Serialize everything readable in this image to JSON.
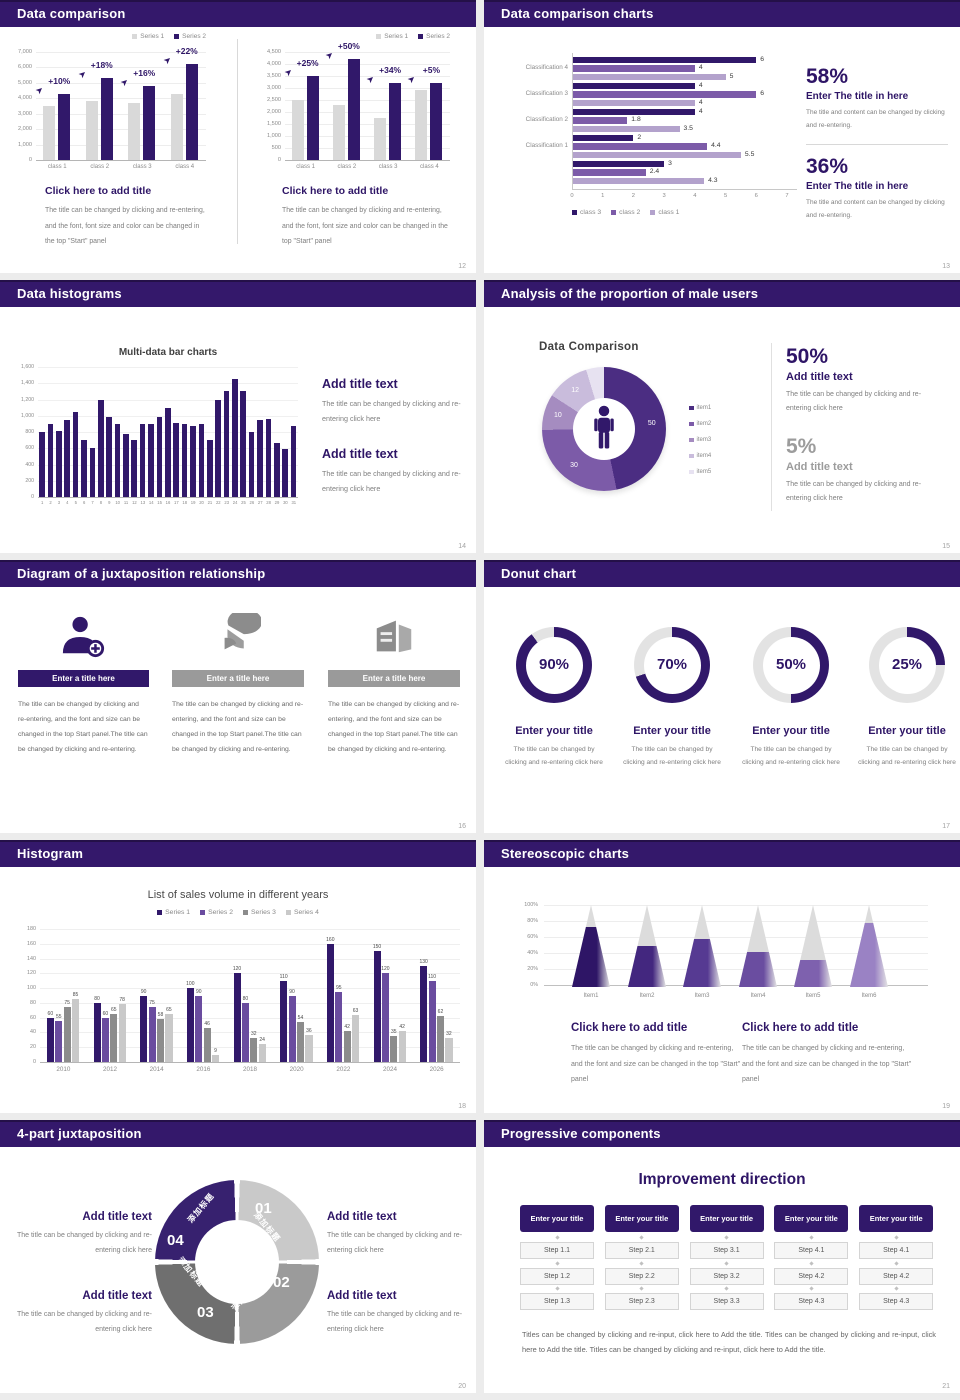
{
  "accent": {
    "header_bg": "#34186b",
    "header_edge": "#241048",
    "primary": "#31186a",
    "primary_text": "#2e1566",
    "purple_mid": "#7c5ba8",
    "purple_light": "#b3a2cc",
    "gray_bar": "#d9d9d9",
    "text_gray": "#7f7f7f",
    "muted": "#9c9c9c",
    "track": "#e3e3e3"
  },
  "chart_data": [
    {
      "id": "s12-left",
      "type": "bar",
      "legend": [
        "Series 1",
        "Series 2"
      ],
      "categories": [
        "class 1",
        "class 2",
        "class 3",
        "class 4"
      ],
      "series": [
        {
          "name": "Series 1",
          "color": "#d9d9d9",
          "values": [
            3500,
            3800,
            3700,
            4300
          ]
        },
        {
          "name": "Series 2",
          "color": "#31186a",
          "values": [
            4300,
            5300,
            4800,
            6200
          ]
        }
      ],
      "growth_labels": [
        "+10%",
        "+18%",
        "+16%",
        "+22%"
      ],
      "yticks": [
        "7,000",
        "6,000",
        "5,000",
        "4,000",
        "3,000",
        "2,000",
        "1,000",
        "0"
      ],
      "ymax": 7000
    },
    {
      "id": "s12-right",
      "type": "bar",
      "legend": [
        "Series 1",
        "Series 2"
      ],
      "categories": [
        "class 1",
        "class 2",
        "class 3",
        "class 4"
      ],
      "series": [
        {
          "name": "Series 1",
          "color": "#d9d9d9",
          "values": [
            2500,
            2300,
            1750,
            2900
          ]
        },
        {
          "name": "Series 2",
          "color": "#31186a",
          "values": [
            3500,
            4200,
            3200,
            3200
          ]
        }
      ],
      "growth_labels": [
        "+25%",
        "+50%",
        "+34%",
        "+5%"
      ],
      "yticks": [
        "4,500",
        "4,000",
        "3,500",
        "3,000",
        "2,500",
        "2,000",
        "1,500",
        "1,000",
        "500",
        "0"
      ],
      "ymax": 4500
    },
    {
      "id": "s13",
      "type": "bar-horizontal",
      "categories": [
        "Classification 4",
        "Classification 3",
        "Classification 2",
        "Classification 1",
        ""
      ],
      "series": [
        {
          "name": "class 3",
          "color": "#31186a",
          "values": [
            6,
            4,
            4,
            2,
            3
          ]
        },
        {
          "name": "class 2",
          "color": "#7c5ba8",
          "values": [
            4,
            6,
            1.8,
            4.4,
            2.4
          ]
        },
        {
          "name": "class 1",
          "color": "#b3a2cc",
          "values": [
            5,
            4,
            3.5,
            5.5,
            4.3
          ]
        }
      ],
      "xticks": [
        "0",
        "1",
        "2",
        "3",
        "4",
        "5",
        "6",
        "7"
      ],
      "xmax": 7
    },
    {
      "id": "s14",
      "type": "bar",
      "title": "Multi-data bar charts",
      "color": "#31186a",
      "categories": [
        "1",
        "2",
        "3",
        "4",
        "5",
        "6",
        "7",
        "8",
        "9",
        "10",
        "11",
        "12",
        "13",
        "14",
        "15",
        "16",
        "17",
        "18",
        "19",
        "20",
        "21",
        "22",
        "23",
        "24",
        "25",
        "26",
        "27",
        "28",
        "29",
        "30",
        "31"
      ],
      "values": [
        800,
        900,
        810,
        950,
        1050,
        700,
        600,
        1200,
        980,
        900,
        770,
        700,
        900,
        900,
        990,
        1100,
        910,
        900,
        880,
        900,
        700,
        1200,
        1300,
        1450,
        1300,
        800,
        950,
        960,
        660,
        590,
        870
      ],
      "yticks": [
        "1,600",
        "1,400",
        "1,200",
        "1,000",
        "800",
        "600",
        "400",
        "200",
        "0"
      ],
      "ymax": 1600
    },
    {
      "id": "s15",
      "type": "donut",
      "title": "Data Comparison",
      "slices": [
        {
          "label": "50",
          "value": 50,
          "color": "#4b2d82"
        },
        {
          "label": "30",
          "value": 30,
          "color": "#7c5ba8"
        },
        {
          "label": "10",
          "value": 10,
          "color": "#a58cc0"
        },
        {
          "label": "12",
          "value": 12,
          "color": "#c9bcdc"
        },
        {
          "label": "",
          "value": 5,
          "color": "#e7e2f1"
        }
      ],
      "legend": [
        "item1",
        "item2",
        "item3",
        "item4",
        "item5"
      ]
    },
    {
      "id": "s17",
      "type": "donut-gauges",
      "values": [
        90,
        70,
        50,
        25
      ],
      "arc_color": "#31186a",
      "track_color": "#e3e3e3"
    },
    {
      "id": "s18",
      "type": "bar",
      "title": "List of sales volume in different years",
      "categories": [
        "2010",
        "2012",
        "2014",
        "2016",
        "2018",
        "2020",
        "2022",
        "2024",
        "2026"
      ],
      "series": [
        {
          "name": "Series 1",
          "color": "#31186a",
          "values": [
            60,
            80,
            90,
            100,
            120,
            110,
            160,
            150,
            130
          ]
        },
        {
          "name": "Series 2",
          "color": "#6a4c9f",
          "values": [
            55,
            60,
            75,
            90,
            80,
            90,
            95,
            120,
            110
          ]
        },
        {
          "name": "Series 3",
          "color": "#8c8c8c",
          "values": [
            75,
            65,
            58,
            46,
            32,
            54,
            42,
            35,
            62
          ]
        },
        {
          "name": "Series 4",
          "color": "#c9c9c9",
          "values": [
            85,
            78,
            65,
            9,
            24,
            36,
            63,
            42,
            32
          ]
        }
      ],
      "yticks": [
        "180",
        "160",
        "140",
        "120",
        "100",
        "80",
        "60",
        "40",
        "20",
        "0"
      ],
      "ymax": 180
    },
    {
      "id": "s19",
      "type": "cone",
      "categories": [
        "Item1",
        "Item2",
        "Item3",
        "Item4",
        "Item5",
        "Item6"
      ],
      "values_pct": [
        73,
        50,
        58,
        43,
        33,
        78
      ],
      "colors": [
        "#2e1566",
        "#43277f",
        "#563a92",
        "#6a4da0",
        "#7e61ae",
        "#9a82c4"
      ],
      "yticks": [
        "100%",
        "80%",
        "60%",
        "40%",
        "20%",
        "0%"
      ]
    }
  ],
  "slides": {
    "s12": {
      "title": "Data comparison",
      "page": "12",
      "blocks": [
        {
          "heading": "Click here to add title",
          "body": "The title can be changed by clicking and re-entering, and the font, font size and color can be changed in the top \"Start\" panel"
        },
        {
          "heading": "Click here to add title",
          "body": "The title can be changed by clicking and re-entering, and the font, font size and color can be changed in the top \"Start\" panel"
        }
      ]
    },
    "s13": {
      "title": "Data comparison charts",
      "page": "13",
      "stats": [
        {
          "value": "58%",
          "heading": "Enter The title in here",
          "body": "The title and content can be changed by clicking and re-entering."
        },
        {
          "value": "36%",
          "heading": "Enter The title in here",
          "body": "The title and content can be changed by clicking and re-entering."
        }
      ]
    },
    "s14": {
      "title": "Data histograms",
      "page": "14",
      "blocks": [
        {
          "heading": "Add title text",
          "body": "The title can be changed by clicking and re-entering click here"
        },
        {
          "heading": "Add title text",
          "body": "The title can be changed by clicking and re-entering click here"
        }
      ]
    },
    "s15": {
      "title": "Analysis of the proportion of male users",
      "page": "15",
      "stats": [
        {
          "value": "50%",
          "heading": "Add title text",
          "body": "The title can be changed by clicking and re-entering click here",
          "muted": false
        },
        {
          "value": "5%",
          "heading": "Add title text",
          "body": "The title can be changed by clicking and re-entering click here",
          "muted": true
        }
      ]
    },
    "s16": {
      "title": "Diagram of a juxtaposition relationship",
      "page": "16",
      "items": [
        {
          "icon": "nurse-add-icon",
          "accent": true,
          "bar": "Enter a title here",
          "body": "The title can be changed by clicking and re-entering, and the font and size can be changed in the top Start panel.The title can be changed by clicking and re-entering."
        },
        {
          "icon": "pie-3d-icon",
          "accent": false,
          "bar": "Enter a title here",
          "body": "The title can be changed by clicking and re-entering, and the font and size can be changed in the top Start panel.The title can be changed by clicking and re-entering."
        },
        {
          "icon": "building-icon",
          "accent": false,
          "bar": "Enter a title here",
          "body": "The title can be changed by clicking and re-entering, and the font and size can be changed in the top Start panel.The title can be changed by clicking and re-entering."
        }
      ]
    },
    "s17": {
      "title": "Donut chart",
      "page": "17",
      "gauges": [
        {
          "pct": "90%",
          "heading": "Enter your title",
          "body": "The title can be changed by clicking and re-entering click here"
        },
        {
          "pct": "70%",
          "heading": "Enter your title",
          "body": "The title can be changed by clicking and re-entering click here"
        },
        {
          "pct": "50%",
          "heading": "Enter your title",
          "body": "The title can be changed by clicking and re-entering click here"
        },
        {
          "pct": "25%",
          "heading": "Enter your title",
          "body": "The title can be changed by clicking and re-entering click here"
        }
      ]
    },
    "s18": {
      "title": "Histogram",
      "page": "18"
    },
    "s19": {
      "title": "Stereoscopic charts",
      "page": "19",
      "blocks": [
        {
          "heading": "Click here to add title",
          "body": "The title can be changed by clicking and re-entering, and the font and size can be changed in the top \"Start\" panel"
        },
        {
          "heading": "Click here to add title",
          "body": "The title can be changed by clicking and re-entering, and the font and size can be changed in the top \"Start\" panel"
        }
      ]
    },
    "s20": {
      "title": "4-part juxtaposition",
      "page": "20",
      "segments": [
        {
          "num": "01",
          "label": "添加标题",
          "color": "#c9c9c9",
          "rot": 50
        },
        {
          "num": "02",
          "label": "添加标题",
          "color": "#9b9b9b",
          "rot": -50
        },
        {
          "num": "03",
          "label": "添加标题",
          "color": "#6f6f6f",
          "rot": 50
        },
        {
          "num": "04",
          "label": "添加标题",
          "color": "#37216f",
          "rot": -50
        }
      ],
      "blocks": [
        {
          "heading": "Add title text",
          "body": "The title can be changed by clicking and re-entering click here"
        },
        {
          "heading": "Add title text",
          "body": "The title can be changed by clicking and re-entering click here"
        },
        {
          "heading": "Add title text",
          "body": "The title can be changed by clicking and re-entering click here"
        },
        {
          "heading": "Add title text",
          "body": "The title can be changed by clicking and re-entering click here"
        }
      ]
    },
    "s21": {
      "title": "Progressive components",
      "page": "21",
      "heading": "Improvement direction",
      "columns": [
        {
          "header": "Enter your title",
          "steps": [
            "Step 1.1",
            "Step 1.2",
            "Step 1.3"
          ]
        },
        {
          "header": "Enter your title",
          "steps": [
            "Step 2.1",
            "Step 2.2",
            "Step 2.3"
          ]
        },
        {
          "header": "Enter your title",
          "steps": [
            "Step 3.1",
            "Step 3.2",
            "Step 3.3"
          ]
        },
        {
          "header": "Enter your title",
          "steps": [
            "Step 4.1",
            "Step 4.2",
            "Step 4.3"
          ]
        },
        {
          "header": "Enter your title",
          "steps": [
            "Step 4.1",
            "Step 4.2",
            "Step 4.3"
          ]
        }
      ],
      "footer": "Titles can be changed by clicking and re-input, click here to Add the title. Titles can be changed by clicking and re-input, click here to Add the title. Titles can be changed by clicking and re-input, click here to Add the title."
    }
  }
}
